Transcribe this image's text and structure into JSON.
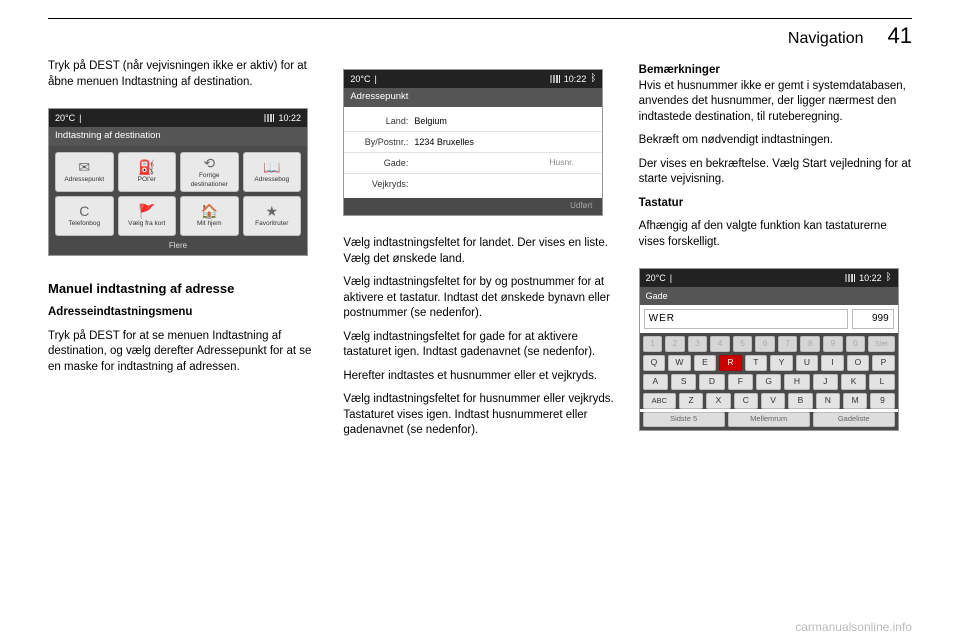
{
  "header": {
    "section": "Navigation",
    "page": "41"
  },
  "col1": {
    "p1": "Tryk på DEST (når vejvisningen ikke er aktiv) for at åbne menuen Indtastning af destination.",
    "screen1": {
      "temp": "20°C",
      "time": "10:22",
      "title": "Indtastning af destination",
      "items": [
        {
          "icon": "✉",
          "label": "Adressepunkt"
        },
        {
          "icon": "⛽",
          "label": "POI'er"
        },
        {
          "icon": "⟲",
          "label": "Forrige destinationer"
        },
        {
          "icon": "📖",
          "label": "Adressebog"
        },
        {
          "icon": "C",
          "label": "Telefonbog"
        },
        {
          "icon": "🚩",
          "label": "Vælg fra kort"
        },
        {
          "icon": "🏠",
          "label": "Mit hjem"
        },
        {
          "icon": "★",
          "label": "Favoritruter"
        }
      ],
      "footer": "Flere"
    },
    "h1": "Manuel indtastning af adresse",
    "h2": "Adresseindtastningsmenu",
    "p2": "Tryk på DEST for at se menuen Indtastning af destination, og vælg derefter Adressepunkt for at se en maske for indtastning af adressen."
  },
  "col2": {
    "screen2": {
      "temp": "20°C",
      "time": "10:22",
      "title": "Adressepunkt",
      "rows": {
        "land_label": "Land:",
        "land_value": "Belgium",
        "by_label": "By/Postnr.:",
        "by_value": "1234 Bruxelles",
        "gade_label": "Gade:",
        "husnr_label": "Husnr.",
        "vej_label": "Vejkryds:"
      },
      "footer": "Udført"
    },
    "p1": "Vælg indtastningsfeltet for landet. Der vises en liste. Vælg det ønskede land.",
    "p2": "Vælg indtastningsfeltet for by og postnummer for at aktivere et tastatur. Indtast det ønskede bynavn eller postnummer (se nedenfor).",
    "p3": "Vælg indtastningsfeltet for gade for at aktivere tastaturet igen. Indtast gadenavnet (se nedenfor).",
    "p4": "Herefter indtastes et husnummer eller et vejkryds.",
    "p5": "Vælg indtastningsfeltet for husnummer eller vejkryds. Tastaturet vises igen. Indtast husnummeret eller gadenavnet (se nedenfor)."
  },
  "col3": {
    "note_title": "Bemærkninger",
    "note_body": "Hvis et husnummer ikke er gemt i systemdatabasen, anvendes det husnummer, der ligger nærmest den indtastede destination, til ruteberegning.",
    "p1": "Bekræft om nødvendigt indtastningen.",
    "p2": "Der vises en bekræftelse. Vælg Start vejledning for at starte vejvisning.",
    "h1": "Tastatur",
    "p3": "Afhængig af den valgte funktion kan tastaturerne vises forskelligt.",
    "screen3": {
      "temp": "20°C",
      "time": "10:22",
      "band": "Gade",
      "input": "WER",
      "num": "999",
      "row_digits": [
        "1",
        "2",
        "3",
        "4",
        "5",
        "6",
        "7",
        "8",
        "9",
        "0",
        "Slet"
      ],
      "row_q": [
        "Q",
        "W",
        "E",
        "R",
        "T",
        "Y",
        "U",
        "I",
        "O",
        "P"
      ],
      "row_a": [
        "A",
        "S",
        "D",
        "F",
        "G",
        "H",
        "J",
        "K",
        "L"
      ],
      "row_z": [
        "ABC",
        "Z",
        "X",
        "C",
        "V",
        "B",
        "N",
        "M",
        "9"
      ],
      "footer": [
        "Sidste 5",
        "Mellemrum",
        "Gadeliste"
      ],
      "highlight": "R"
    }
  },
  "watermark": "carmanualsonline.info"
}
